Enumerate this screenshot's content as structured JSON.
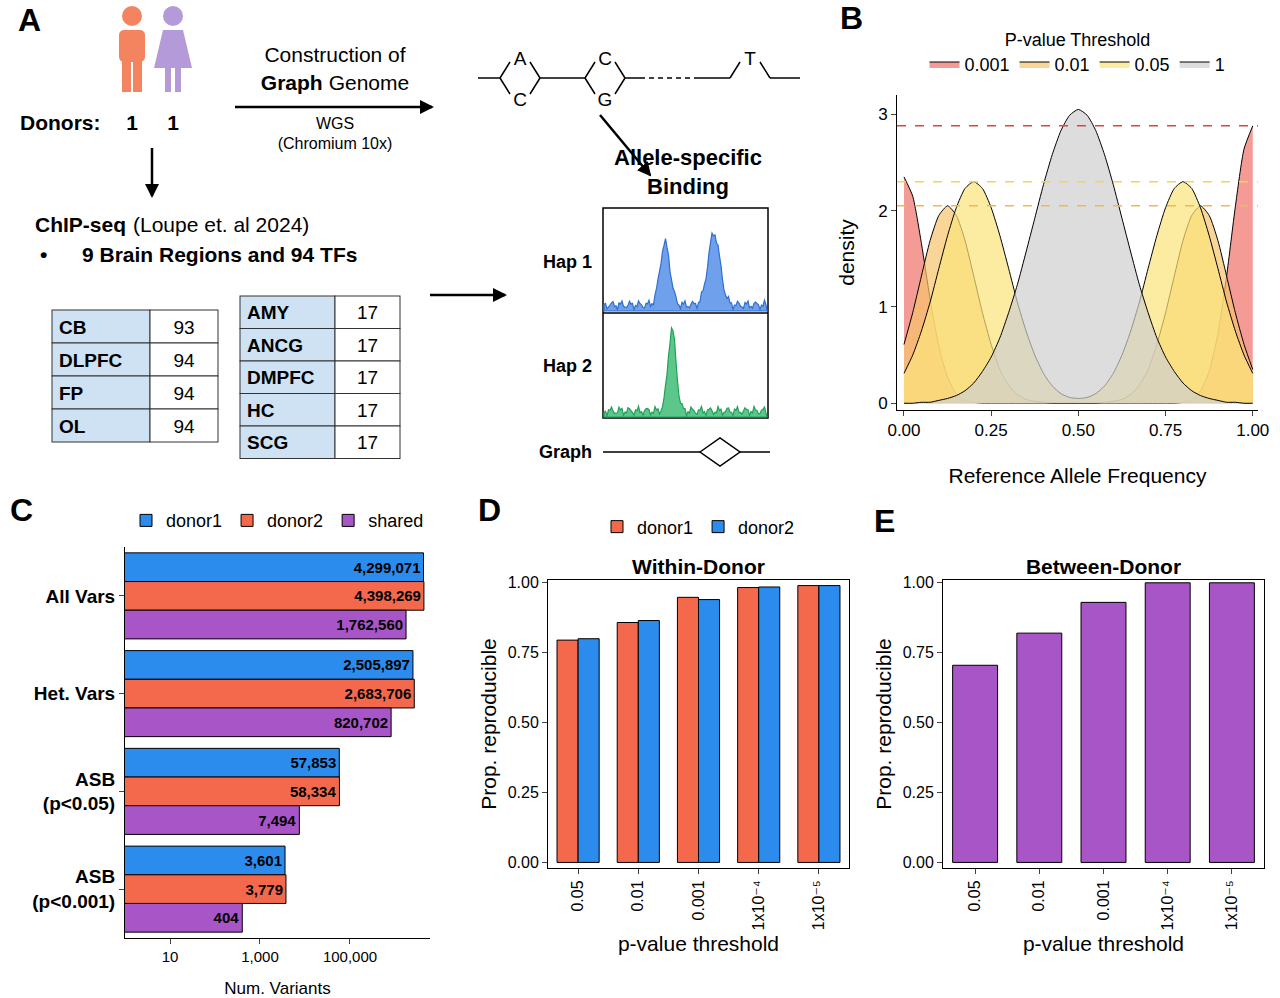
{
  "diagram": {
    "panel": "A",
    "donors": {
      "label": "Donors:",
      "counts": [
        1,
        1
      ]
    },
    "construction": {
      "text": "Construction of",
      "bold": "Graph",
      "rest": "Genome",
      "method": "WGS",
      "platform": "(Chromium 10x)"
    },
    "chipseq": {
      "title": "ChIP-seq",
      "citation": "(Loupe et. al 2024)",
      "bullet": "•",
      "summary": "9 Brain Regions and 94 TFs"
    },
    "tables": [
      [
        [
          "CB",
          93
        ],
        [
          "DLPFC",
          94
        ],
        [
          "FP",
          94
        ],
        [
          "OL",
          94
        ]
      ],
      [
        [
          "AMY",
          17
        ],
        [
          "ANCG",
          17
        ],
        [
          "DMPFC",
          17
        ],
        [
          "HC",
          17
        ],
        [
          "SCG",
          17
        ]
      ]
    ],
    "graph_alleles": [
      [
        "A",
        "C"
      ],
      [
        "C",
        "G"
      ],
      [
        "T"
      ]
    ],
    "asb": {
      "title": "Allele-specific Binding",
      "tracks": [
        "Hap 1",
        "Hap 2"
      ],
      "graph_label": "Graph"
    }
  },
  "chart_data": [
    {
      "panel": "B",
      "type": "area",
      "x": [
        0,
        0.025,
        0.05,
        0.075,
        0.1,
        0.125,
        0.15,
        0.175,
        0.2,
        0.225,
        0.25,
        0.275,
        0.3,
        0.325,
        0.35,
        0.375,
        0.4,
        0.425,
        0.45,
        0.475,
        0.5,
        0.525,
        0.55,
        0.575,
        0.6,
        0.625,
        0.65,
        0.675,
        0.7,
        0.725,
        0.75,
        0.775,
        0.8,
        0.825,
        0.85,
        0.875,
        0.9,
        0.925,
        0.95,
        0.975,
        1
      ],
      "series": [
        {
          "name": "0.001",
          "color": "#f0706a",
          "values": [
            2.35,
            2.15,
            1.66,
            1.08,
            0.59,
            0.27,
            0.1,
            0.03,
            0.01,
            0,
            0,
            0,
            0,
            0,
            0,
            0,
            0,
            0,
            0,
            0,
            0,
            0,
            0,
            0,
            0,
            0,
            0,
            0,
            0,
            0,
            0,
            0,
            0.01,
            0.04,
            0.13,
            0.33,
            0.72,
            1.32,
            2.04,
            2.64,
            2.88
          ]
        },
        {
          "name": "0.01",
          "color": "#f7c36c",
          "values": [
            0.61,
            0.94,
            1.32,
            1.69,
            1.95,
            2.05,
            1.95,
            1.69,
            1.32,
            0.94,
            0.61,
            0.35,
            0.19,
            0.09,
            0.04,
            0.02,
            0.01,
            0,
            0,
            0,
            0,
            0,
            0,
            0.01,
            0.02,
            0.04,
            0.09,
            0.19,
            0.35,
            0.61,
            0.94,
            1.32,
            1.69,
            1.95,
            2.05,
            1.95,
            1.69,
            1.32,
            0.94,
            0.61,
            0.35
          ]
        },
        {
          "name": "0.05",
          "color": "#fbe47a",
          "values": [
            0.31,
            0.5,
            0.75,
            1.05,
            1.4,
            1.74,
            2.03,
            2.23,
            2.3,
            2.23,
            2.03,
            1.74,
            1.4,
            1.05,
            0.75,
            0.5,
            0.31,
            0.18,
            0.1,
            0.06,
            0.05,
            0.06,
            0.1,
            0.18,
            0.31,
            0.5,
            0.75,
            1.05,
            1.4,
            1.74,
            2.03,
            2.23,
            2.3,
            2.23,
            2.03,
            1.74,
            1.4,
            1.05,
            0.75,
            0.5,
            0.31
          ]
        },
        {
          "name": "1",
          "color": "#cfcfcf",
          "values": [
            0,
            0,
            0.01,
            0.01,
            0.03,
            0.05,
            0.08,
            0.13,
            0.21,
            0.33,
            0.48,
            0.68,
            0.94,
            1.23,
            1.57,
            1.92,
            2.27,
            2.58,
            2.83,
            2.99,
            3.05,
            2.99,
            2.83,
            2.58,
            2.27,
            1.92,
            1.57,
            1.23,
            0.94,
            0.68,
            0.48,
            0.33,
            0.21,
            0.13,
            0.08,
            0.05,
            0.03,
            0.01,
            0.01,
            0,
            0
          ]
        }
      ],
      "reference_lines": [
        {
          "value": 2.88,
          "color": "#e8403a",
          "line_style": "dashed"
        },
        {
          "value": 2.3,
          "color": "#f5d64a",
          "line_style": "dashed"
        },
        {
          "value": 2.05,
          "color": "#f2b84e",
          "line_style": "dashed"
        }
      ],
      "legend_title": "P-value Threshold",
      "legend": "top",
      "xlabel": "Reference Allele Frequency",
      "ylabel": "density",
      "xlim": [
        -0.02,
        1.015
      ],
      "xticks": [
        {
          "value": 0,
          "label": "0.00"
        },
        {
          "value": 0.25,
          "label": "0.25"
        },
        {
          "value": 0.5,
          "label": "0.50"
        },
        {
          "value": 0.75,
          "label": "0.75"
        },
        {
          "value": 1,
          "label": "1.00"
        }
      ],
      "ylim": [
        -0.07,
        3.2
      ],
      "yticks": [
        0,
        1,
        2,
        3
      ],
      "grid": false
    },
    {
      "panel": "C",
      "type": "bar",
      "orientation": "horizontal",
      "categories": [
        "All Vars",
        "Het. Vars",
        "ASB (p<0.05)",
        "ASB (p<0.001)"
      ],
      "series": [
        {
          "name": "donor1",
          "color": "#2b8cee",
          "values": [
            4299071,
            2505897,
            57853,
            3601
          ],
          "value_labels": [
            "4,299,071",
            "2,505,897",
            "57,853",
            "3,601"
          ]
        },
        {
          "name": "donor2",
          "color": "#f4694c",
          "values": [
            4398269,
            2683706,
            58334,
            3779
          ],
          "value_labels": [
            "4,398,269",
            "2,683,706",
            "58,334",
            "3,779"
          ]
        },
        {
          "name": "shared",
          "color": "#a855c8",
          "values": [
            1762560,
            820702,
            7494,
            404
          ],
          "value_labels": [
            "1,762,560",
            "820,702",
            "7,494",
            "404"
          ]
        }
      ],
      "xlabel": "Num. Variants",
      "log": "x",
      "xlim": [
        1,
        6000000
      ],
      "xticks": [
        10,
        {
          "value": 1000,
          "label": "1,000"
        },
        {
          "value": 100000,
          "label": "100,000"
        }
      ],
      "legend": "top",
      "data_labels": true,
      "grid": false
    },
    {
      "panel": "D",
      "type": "bar",
      "title": "Within-Donor",
      "categories": [
        "0.05",
        "0.01",
        "0.001",
        "1x10⁻⁴",
        "1x10⁻⁵"
      ],
      "series": [
        {
          "name": "donor1",
          "color": "#f4694c",
          "values": [
            0.795,
            0.858,
            0.948,
            0.983,
            0.99
          ]
        },
        {
          "name": "donor2",
          "color": "#2b8cee",
          "values": [
            0.8,
            0.865,
            0.94,
            0.985,
            0.99
          ]
        }
      ],
      "xlabel": "p-value threshold",
      "ylabel": "Prop. reproducible",
      "ylim": [
        -0.02,
        1.01
      ],
      "yticks": [
        {
          "value": 0,
          "label": "0.00"
        },
        {
          "value": 0.25,
          "label": "0.25"
        },
        {
          "value": 0.5,
          "label": "0.50"
        },
        {
          "value": 0.75,
          "label": "0.75"
        },
        {
          "value": 1,
          "label": "1.00"
        }
      ],
      "legend": "top",
      "grid": false
    },
    {
      "panel": "E",
      "type": "bar",
      "title": "Between-Donor",
      "categories": [
        "0.05",
        "0.01",
        "0.001",
        "1x10⁻⁴",
        "1x10⁻⁵"
      ],
      "values": [
        0.705,
        0.82,
        0.93,
        1.0,
        1.0
      ],
      "color": "#a855c8",
      "xlabel": "p-value threshold",
      "ylabel": "Prop. reproducible",
      "ylim": [
        -0.02,
        1.01
      ],
      "yticks": [
        {
          "value": 0,
          "label": "0.00"
        },
        {
          "value": 0.25,
          "label": "0.25"
        },
        {
          "value": 0.5,
          "label": "0.50"
        },
        {
          "value": 0.75,
          "label": "0.75"
        },
        {
          "value": 1,
          "label": "1.00"
        }
      ],
      "grid": false
    }
  ]
}
